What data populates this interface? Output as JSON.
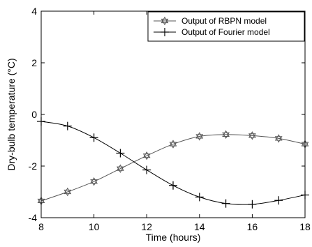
{
  "chart_data": {
    "type": "line",
    "xlabel": "Time (hours)",
    "ylabel": "Dry-bulb temperature (°C)",
    "xlim": [
      8,
      18
    ],
    "ylim": [
      -4,
      4
    ],
    "x_ticks": [
      8,
      10,
      12,
      14,
      16,
      18
    ],
    "y_ticks": [
      -4,
      -2,
      0,
      2,
      4
    ],
    "x_tick_labels": [
      "8",
      "10",
      "12",
      "14",
      "16",
      "18"
    ],
    "y_tick_labels": [
      "-4",
      "-2",
      "0",
      "2",
      "4"
    ],
    "grid": false,
    "legend_position": "top-right",
    "x": [
      8,
      9,
      10,
      11,
      12,
      13,
      14,
      15,
      16,
      17,
      18
    ],
    "series": [
      {
        "name": "Output of RBPN model",
        "marker": "hexagram",
        "color": "#555555",
        "values": [
          -3.35,
          -3.0,
          -2.6,
          -2.1,
          -1.6,
          -1.15,
          -0.85,
          -0.78,
          -0.82,
          -0.93,
          -1.15
        ]
      },
      {
        "name": "Output of Fourier model",
        "marker": "plus",
        "color": "#000000",
        "values": [
          -0.27,
          -0.45,
          -0.9,
          -1.5,
          -2.15,
          -2.75,
          -3.2,
          -3.45,
          -3.48,
          -3.33,
          -3.12
        ]
      }
    ]
  }
}
